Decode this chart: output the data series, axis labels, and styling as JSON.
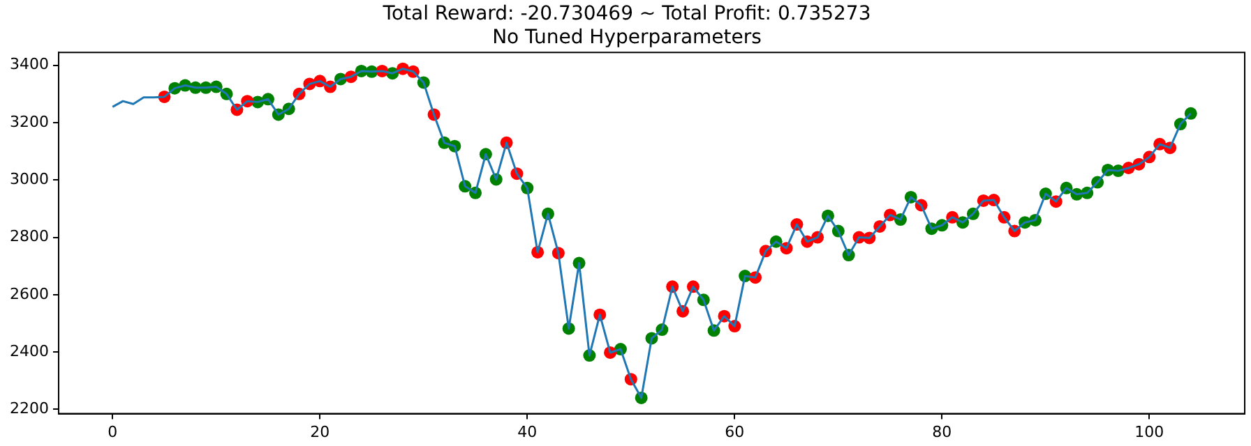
{
  "chart_data": {
    "type": "line",
    "title": "Total Reward: -20.730469 ~ Total Profit: 0.735273",
    "subtitle": "No Tuned Hyperparameters",
    "xlim": [
      -5.2,
      109.2
    ],
    "xticks": [
      0,
      20,
      40,
      60,
      80,
      100
    ],
    "ylim": [
      2185,
      3445
    ],
    "yticks": [
      2200,
      2400,
      2600,
      2800,
      3000,
      3200,
      3400
    ],
    "grid": false,
    "legend": false,
    "series": [
      {
        "type": "line",
        "color": "#1f77b4",
        "marker": "none",
        "x": [
          0,
          1,
          2,
          3,
          4,
          5,
          6,
          7,
          8,
          9,
          10,
          11,
          12,
          13,
          14,
          15,
          16,
          17,
          18,
          19,
          20,
          21,
          22,
          23,
          24,
          25,
          26,
          27,
          28,
          29,
          30,
          31,
          32,
          33,
          34,
          35,
          36,
          37,
          38,
          39,
          40,
          41,
          42,
          43,
          44,
          45,
          46,
          47,
          48,
          49,
          50,
          51,
          52,
          53,
          54,
          55,
          56,
          57,
          58,
          59,
          60,
          61,
          62,
          63,
          64,
          65,
          66,
          67,
          68,
          69,
          70,
          71,
          72,
          73,
          74,
          75,
          76,
          77,
          78,
          79,
          80,
          81,
          82,
          83,
          84,
          85,
          86,
          87,
          88,
          89,
          90,
          91,
          92,
          93,
          94,
          95,
          96,
          97,
          98,
          99,
          100,
          101,
          102,
          103,
          104
        ],
        "values": [
          3255,
          3275,
          3265,
          3288,
          3288,
          3290,
          3320,
          3330,
          3322,
          3322,
          3325,
          3300,
          3245,
          3275,
          3272,
          3282,
          3228,
          3248,
          3300,
          3335,
          3345,
          3325,
          3352,
          3360,
          3380,
          3378,
          3380,
          3372,
          3388,
          3378,
          3340,
          3228,
          3130,
          3118,
          2978,
          2955,
          3090,
          3002,
          3130,
          3022,
          2972,
          2748,
          2882,
          2745,
          2482,
          2710,
          2388,
          2530,
          2398,
          2410,
          2305,
          2240,
          2448,
          2478,
          2628,
          2542,
          2628,
          2582,
          2475,
          2525,
          2490,
          2665,
          2660,
          2752,
          2785,
          2762,
          2845,
          2785,
          2800,
          2875,
          2822,
          2738,
          2800,
          2798,
          2838,
          2878,
          2862,
          2940,
          2912,
          2830,
          2842,
          2870,
          2852,
          2882,
          2928,
          2930,
          2870,
          2822,
          2852,
          2860,
          2952,
          2925,
          2972,
          2950,
          2955,
          2992,
          3035,
          3032,
          3042,
          3055,
          3080,
          3125,
          3112,
          3195,
          3232
        ]
      },
      {
        "type": "scatter",
        "color": "#ff0000",
        "marker": "circle",
        "x": [
          5,
          12,
          13,
          18,
          19,
          20,
          21,
          23,
          26,
          28,
          29,
          31,
          38,
          39,
          41,
          43,
          47,
          48,
          50,
          54,
          55,
          56,
          59,
          60,
          62,
          63,
          65,
          66,
          67,
          68,
          72,
          73,
          74,
          75,
          78,
          81,
          84,
          85,
          86,
          87,
          91,
          98,
          99,
          100,
          101,
          102
        ],
        "values": [
          3290,
          3245,
          3275,
          3300,
          3335,
          3345,
          3325,
          3360,
          3380,
          3388,
          3378,
          3228,
          3130,
          3022,
          2748,
          2745,
          2530,
          2398,
          2305,
          2628,
          2542,
          2628,
          2525,
          2490,
          2660,
          2752,
          2762,
          2845,
          2785,
          2800,
          2800,
          2798,
          2838,
          2878,
          2912,
          2870,
          2928,
          2930,
          2870,
          2822,
          2925,
          3042,
          3055,
          3080,
          3125,
          3112
        ]
      },
      {
        "type": "scatter",
        "color": "#008000",
        "marker": "circle",
        "x": [
          6,
          7,
          8,
          9,
          10,
          11,
          14,
          15,
          16,
          17,
          22,
          24,
          25,
          27,
          30,
          32,
          33,
          34,
          35,
          36,
          37,
          40,
          42,
          44,
          45,
          46,
          49,
          51,
          52,
          53,
          57,
          58,
          61,
          64,
          69,
          70,
          71,
          76,
          77,
          79,
          80,
          82,
          83,
          88,
          89,
          90,
          92,
          93,
          94,
          95,
          96,
          97,
          103,
          104
        ],
        "values": [
          3320,
          3330,
          3322,
          3322,
          3325,
          3300,
          3272,
          3282,
          3228,
          3248,
          3352,
          3380,
          3378,
          3372,
          3340,
          3130,
          3118,
          2978,
          2955,
          3090,
          3002,
          2972,
          2882,
          2482,
          2710,
          2388,
          2410,
          2240,
          2448,
          2478,
          2582,
          2475,
          2665,
          2785,
          2875,
          2822,
          2738,
          2862,
          2940,
          2830,
          2842,
          2852,
          2882,
          2852,
          2860,
          2952,
          2972,
          2950,
          2955,
          2992,
          3035,
          3032,
          3195,
          3232
        ]
      }
    ]
  }
}
